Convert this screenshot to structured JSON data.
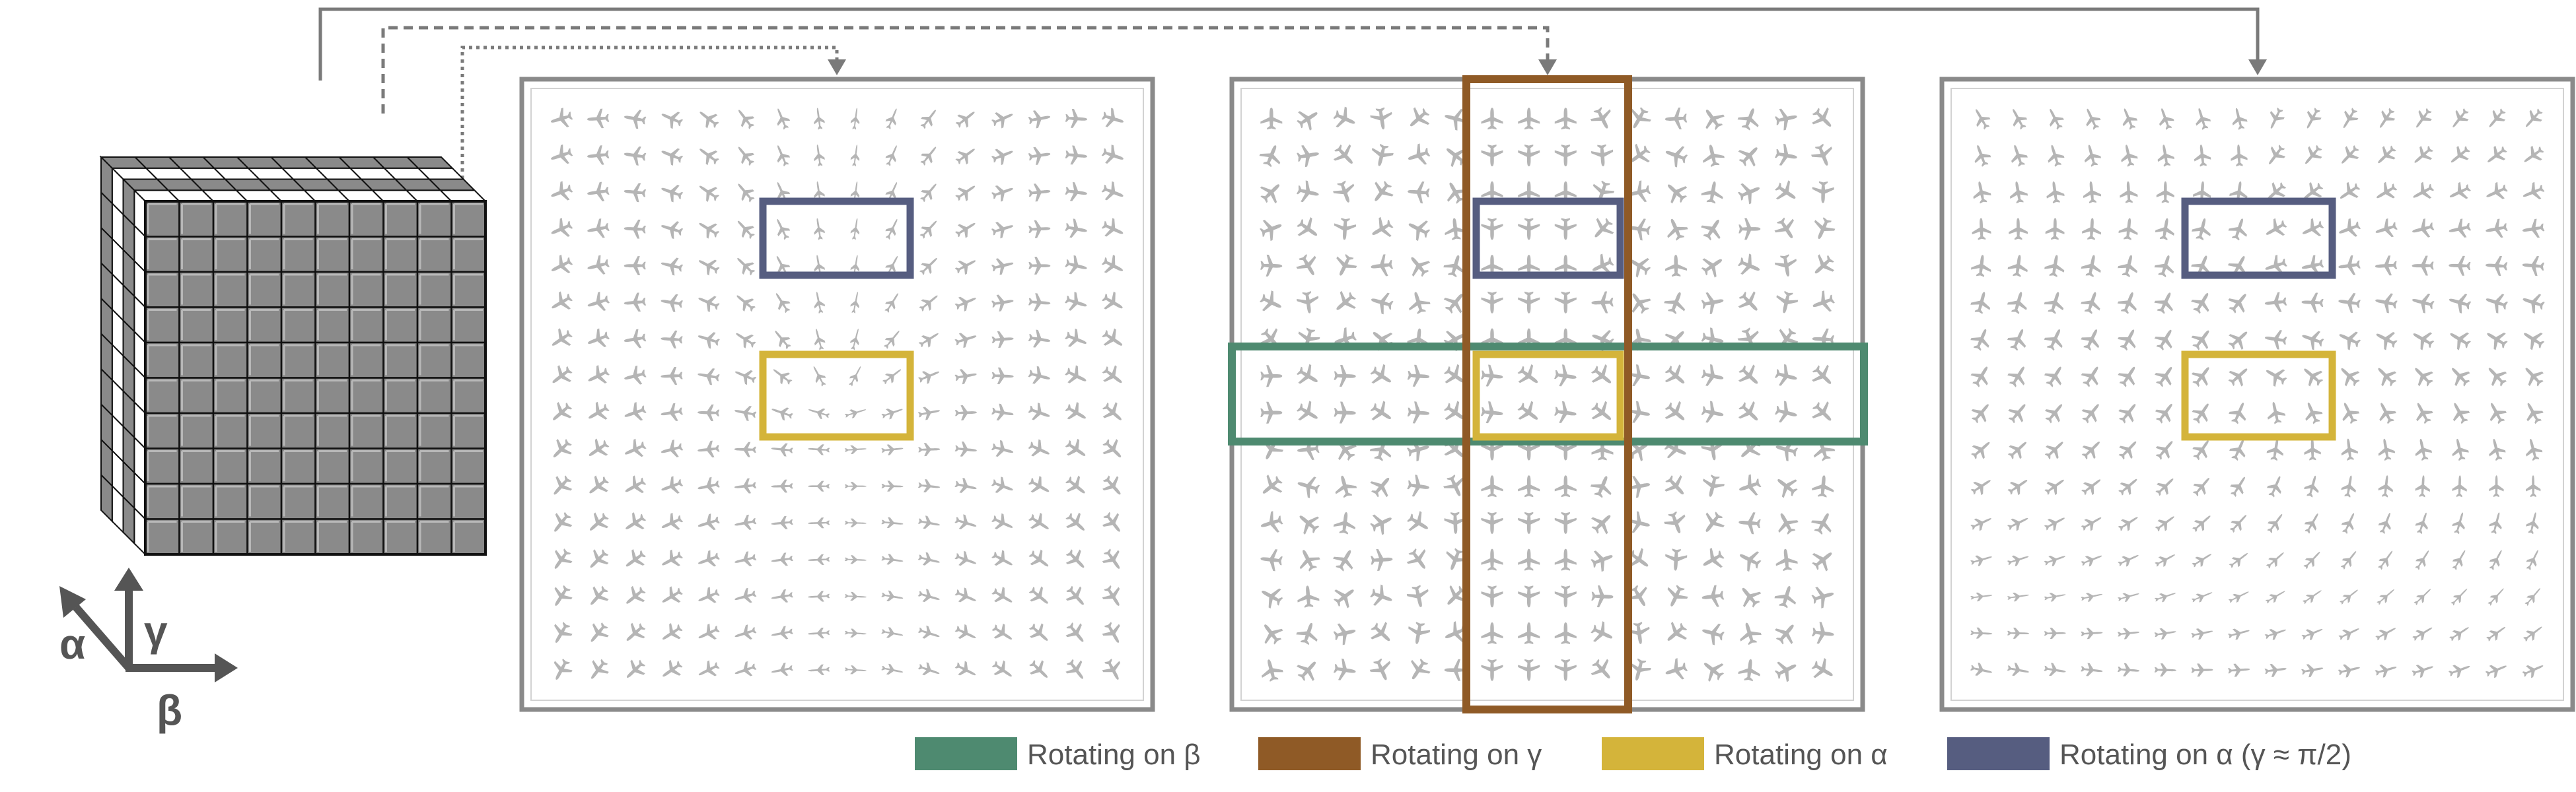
{
  "axes": {
    "alpha": "α",
    "gamma": "γ",
    "beta": "β"
  },
  "colors": {
    "beta": "#4e8a70",
    "gamma": "#8f5a26",
    "alpha": "#d4b43a",
    "alpha_half_pi": "#565d80",
    "frame": "#8a8a8a",
    "connector": "#7a7a7a",
    "cube_face": "#8a8a8a",
    "cube_white": "#ffffff",
    "glyph": "#b5b5b5"
  },
  "grid": {
    "rows": 16,
    "cols": 16
  },
  "cube": {
    "front_rows": 10,
    "front_cols": 10,
    "depth": 4
  },
  "glyph_icon": "airplane-icon",
  "panels": [
    {
      "id": "alpha-slice",
      "pattern": "alpha"
    },
    {
      "id": "beta-slice",
      "pattern": "beta"
    },
    {
      "id": "gamma-slice",
      "pattern": "gamma"
    }
  ],
  "legend": [
    {
      "key": "beta",
      "label": "Rotating on β"
    },
    {
      "key": "gamma",
      "label": "Rotating on γ"
    },
    {
      "key": "alpha",
      "label": "Rotating on α"
    },
    {
      "key": "alpha_half_pi",
      "label": "Rotating on α (γ ≈ π/2)"
    }
  ]
}
